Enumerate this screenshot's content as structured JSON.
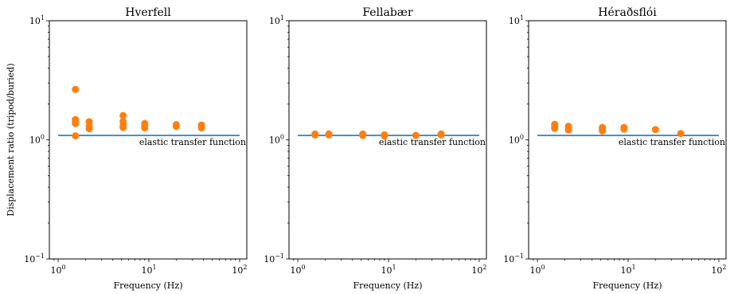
{
  "colors": {
    "reference_line": "#1f77b4",
    "points": "#ff7f0e"
  },
  "chart_data": [
    {
      "type": "scatter",
      "title": "Hverfell",
      "xlabel": "Frequency (Hz)",
      "ylabel": "Displacement ratio (tripod/buried)",
      "xscale": "log",
      "yscale": "log",
      "xlim": [
        0.8,
        120
      ],
      "ylim": [
        0.1,
        10
      ],
      "xticks": [
        "10^0",
        "10^1",
        "10^2"
      ],
      "yticks": [
        "10^-1",
        "10^0",
        "10^1"
      ],
      "grid": false,
      "reference_line": {
        "label": "elastic transfer function",
        "x": [
          1,
          100
        ],
        "y": 1.09
      },
      "points": {
        "x": [
          1.55,
          1.55,
          1.55,
          1.55,
          1.55,
          2.2,
          2.2,
          2.2,
          5.2,
          5.2,
          5.2,
          5.2,
          9.0,
          9.0,
          9.0,
          20.0,
          20.0,
          38.0,
          38.0,
          38.0
        ],
        "y": [
          2.65,
          1.48,
          1.43,
          1.37,
          1.08,
          1.42,
          1.3,
          1.24,
          1.6,
          1.43,
          1.32,
          1.27,
          1.37,
          1.33,
          1.26,
          1.34,
          1.3,
          1.33,
          1.29,
          1.26
        ]
      }
    },
    {
      "type": "scatter",
      "title": "Fellabær",
      "xlabel": "Frequency (Hz)",
      "ylabel": "",
      "xscale": "log",
      "yscale": "log",
      "xlim": [
        0.8,
        120
      ],
      "ylim": [
        0.1,
        10
      ],
      "xticks": [
        "10^0",
        "10^1",
        "10^2"
      ],
      "yticks": [
        "10^-1",
        "10^0",
        "10^1"
      ],
      "grid": false,
      "reference_line": {
        "label": "elastic transfer function",
        "x": [
          1,
          100
        ],
        "y": 1.09
      },
      "points": {
        "x": [
          1.55,
          1.55,
          2.2,
          2.2,
          5.2,
          5.2,
          9.0,
          9.0,
          20.0,
          38.0,
          38.0
        ],
        "y": [
          1.12,
          1.1,
          1.12,
          1.1,
          1.12,
          1.09,
          1.1,
          1.08,
          1.09,
          1.12,
          1.1
        ]
      }
    },
    {
      "type": "scatter",
      "title": "Héraðsflói",
      "xlabel": "Frequency (Hz)",
      "ylabel": "",
      "xscale": "log",
      "yscale": "log",
      "xlim": [
        0.8,
        120
      ],
      "ylim": [
        0.1,
        10
      ],
      "xticks": [
        "10^0",
        "10^1",
        "10^2"
      ],
      "yticks": [
        "10^-1",
        "10^0",
        "10^1"
      ],
      "grid": false,
      "reference_line": {
        "label": "elastic transfer function",
        "x": [
          1,
          100
        ],
        "y": 1.09
      },
      "points": {
        "x": [
          1.55,
          1.55,
          1.55,
          2.2,
          2.2,
          2.2,
          5.2,
          5.2,
          5.2,
          9.0,
          9.0,
          20.0,
          38.0
        ],
        "y": [
          1.35,
          1.3,
          1.25,
          1.3,
          1.25,
          1.21,
          1.27,
          1.23,
          1.19,
          1.27,
          1.23,
          1.22,
          1.13
        ]
      }
    }
  ]
}
